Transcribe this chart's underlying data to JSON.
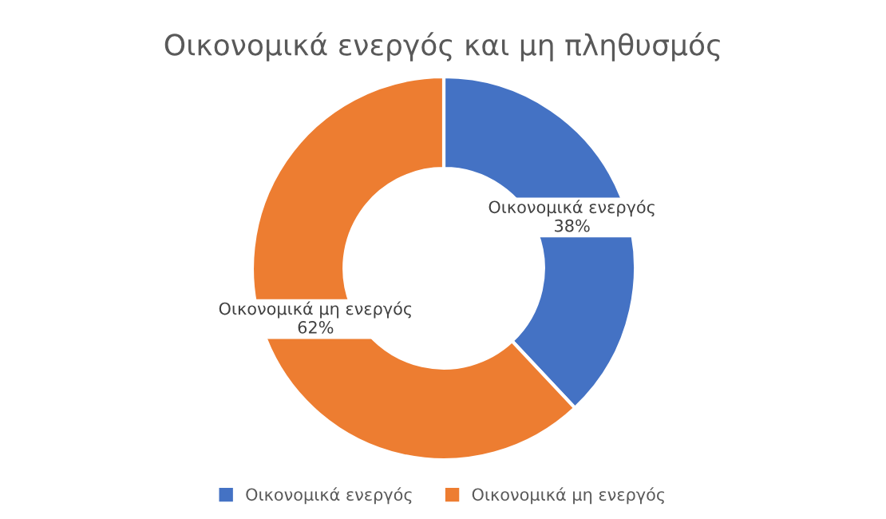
{
  "chart_data": {
    "type": "donut",
    "title": "Οικονομικά ενεργός και μη πληθυσμός",
    "categories": [
      "Οικονομικά ενεργός",
      "Οικονομικά μη ενεργός"
    ],
    "values": [
      38,
      62
    ],
    "colors": [
      "#4472c4",
      "#ed7d31"
    ],
    "value_labels": [
      "38%",
      "62%"
    ],
    "legend": "bottom"
  }
}
